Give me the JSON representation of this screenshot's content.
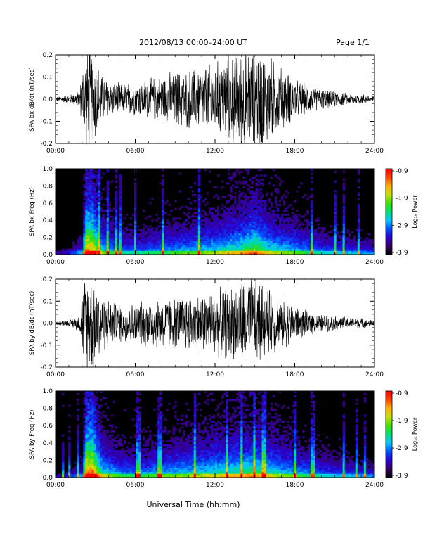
{
  "header": {
    "title": "2012/08/13  00:00–24:00 UT",
    "page": "Page 1/1"
  },
  "footer": {
    "xlabel": "Universal Time (hh:mm)"
  },
  "x_ticks": [
    "00:00",
    "06:00",
    "12:00",
    "18:00",
    "24:00"
  ],
  "colorbar": {
    "label": "Log₁₀ Power",
    "ticks": [
      "-0.9",
      "-1.9",
      "-2.9",
      "-3.9"
    ],
    "range": [
      -3.9,
      -0.9
    ],
    "colors": [
      "#000000",
      "#3a0060",
      "#2a00d0",
      "#0050ff",
      "#00c8ff",
      "#00e070",
      "#40e000",
      "#c8e000",
      "#ffb000",
      "#ff4000",
      "#ff0000"
    ]
  },
  "chart_data": [
    {
      "type": "line",
      "panel": "bx-wave",
      "ylabel": "SPA bx dB/dt (nT/sec)",
      "xlim": [
        0,
        24
      ],
      "ylim": [
        -0.2,
        0.2
      ],
      "y_ticks": [
        "0.2",
        "0.1",
        "0.0",
        "-0.1",
        "-0.2"
      ],
      "envelope": {
        "hours": [
          0,
          1,
          1.8,
          2.2,
          2.8,
          3.5,
          4.5,
          6,
          7,
          8,
          9,
          10,
          11,
          12,
          13,
          14,
          15,
          15.5,
          16,
          17,
          18,
          19,
          20,
          21,
          22,
          23,
          24
        ],
        "amplitude": [
          0.012,
          0.02,
          0.04,
          0.25,
          0.25,
          0.12,
          0.08,
          0.08,
          0.1,
          0.12,
          0.14,
          0.15,
          0.16,
          0.18,
          0.22,
          0.25,
          0.25,
          0.25,
          0.22,
          0.16,
          0.1,
          0.07,
          0.05,
          0.04,
          0.03,
          0.025,
          0.02
        ]
      }
    },
    {
      "type": "heatmap",
      "panel": "bx-spectrogram",
      "ylabel": "SPA bx Freq (Hz)",
      "xlim": [
        0,
        24
      ],
      "ylim": [
        0,
        1.0
      ],
      "y_ticks": [
        "1.0",
        "0.8",
        "0.6",
        "0.4",
        "0.2",
        "0.0"
      ],
      "value_range": [
        -3.9,
        -0.9
      ],
      "activity": {
        "hours": [
          0,
          1,
          2,
          2.3,
          2.8,
          3.5,
          5,
          6,
          8,
          10,
          12,
          14,
          15,
          16,
          18,
          20,
          22,
          24
        ],
        "level": [
          0.1,
          0.15,
          0.3,
          0.95,
          0.9,
          0.5,
          0.35,
          0.35,
          0.4,
          0.45,
          0.5,
          0.6,
          0.7,
          0.55,
          0.45,
          0.35,
          0.3,
          0.25
        ]
      }
    },
    {
      "type": "line",
      "panel": "by-wave",
      "ylabel": "SPA by dB/dt (nT/sec)",
      "xlim": [
        0,
        24
      ],
      "ylim": [
        -0.2,
        0.2
      ],
      "y_ticks": [
        "0.2",
        "0.1",
        "0.0",
        "-0.1",
        "-0.2"
      ],
      "envelope": {
        "hours": [
          0,
          1,
          1.8,
          2.2,
          2.8,
          3.5,
          4.5,
          6,
          7,
          8,
          9,
          10,
          11,
          12,
          13,
          14,
          15,
          15.5,
          16,
          17,
          18,
          19,
          20,
          21,
          22,
          23,
          24
        ],
        "amplitude": [
          0.01,
          0.015,
          0.04,
          0.25,
          0.25,
          0.14,
          0.1,
          0.1,
          0.12,
          0.13,
          0.13,
          0.14,
          0.15,
          0.16,
          0.18,
          0.22,
          0.23,
          0.2,
          0.17,
          0.13,
          0.09,
          0.06,
          0.045,
          0.035,
          0.03,
          0.025,
          0.02
        ]
      }
    },
    {
      "type": "heatmap",
      "panel": "by-spectrogram",
      "ylabel": "SPA by Freq (Hz)",
      "xlim": [
        0,
        24
      ],
      "ylim": [
        0,
        1.0
      ],
      "y_ticks": [
        "1.0",
        "0.8",
        "0.6",
        "0.4",
        "0.2",
        "0.0"
      ],
      "value_range": [
        -3.9,
        -0.9
      ],
      "activity": {
        "hours": [
          0,
          1,
          2,
          2.3,
          2.8,
          3.5,
          5,
          6,
          8,
          10,
          12,
          14,
          15,
          16,
          18,
          20,
          22,
          24
        ],
        "level": [
          0.1,
          0.15,
          0.3,
          1.0,
          0.95,
          0.55,
          0.4,
          0.4,
          0.45,
          0.5,
          0.55,
          0.6,
          0.65,
          0.55,
          0.45,
          0.35,
          0.3,
          0.25
        ]
      }
    }
  ]
}
